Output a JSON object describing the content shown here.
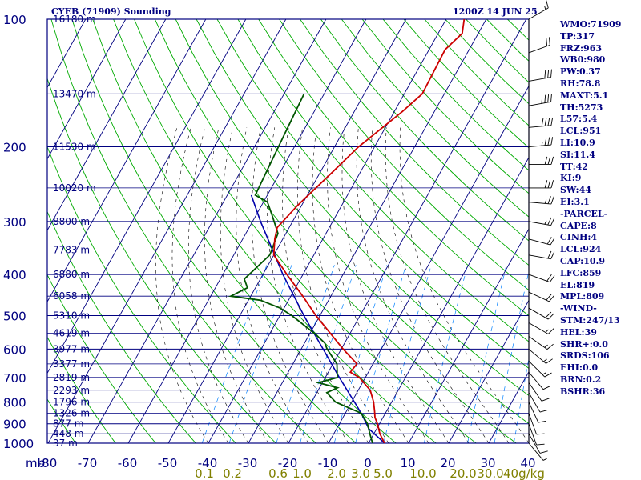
{
  "header": {
    "station": "CYEB (71909) Sounding",
    "time": "1200Z 14 JUN 25"
  },
  "stats": [
    "WMO:71909",
    "TP:317",
    "FRZ:963",
    "WB0:980",
    "PW:0.37",
    "RH:78.8",
    "MAXT:5.1",
    "TH:5273",
    "L57:5.4",
    "LCL:951",
    "LI:10.9",
    "SI:11.4",
    "TT:42",
    "KI:9",
    "SW:44",
    "EI:3.1",
    "-PARCEL-",
    "CAPE:8",
    "CINH:4",
    "LCL:924",
    "CAP:10.9",
    "LFC:859",
    "EL:819",
    "MPL:809",
    "-WIND-",
    "STM:247/13",
    "HEL:39",
    "SHR+:0.0",
    "SRDS:106",
    "EHI:0.0",
    "BRN:0.2",
    "BSHR:36"
  ],
  "colors": {
    "background": "#ffffff",
    "isobar": "#000080",
    "isotherm": "#000080",
    "dry_adiabat": "#00aa00",
    "moist_adiabat": "#000000",
    "mixing_ratio": "#0080ff",
    "temperature": "#cc0000",
    "dewpoint": "#005500",
    "parcel": "#0000aa",
    "label_text": "#000080",
    "mixing_label_text": "#808000"
  },
  "chart_data": {
    "type": "skew-t",
    "pressure_unit": "mb",
    "pressure_range": [
      100,
      1000
    ],
    "temperature_range": [
      -80,
      0
    ],
    "pressure_ticks": [
      100,
      200,
      300,
      400,
      500,
      600,
      700,
      800,
      900,
      1000
    ],
    "pressure_axis_unit_label": "mb",
    "temperature_ticks": [
      -80,
      -70,
      -60,
      -50,
      -40,
      -30,
      -20,
      -10,
      0,
      10,
      20,
      30,
      40
    ],
    "temperature_tick_labels": [
      "-80",
      "-70",
      "-60",
      "-50",
      "-40",
      "-30",
      "-20",
      "-10",
      "0",
      "10",
      "20",
      "30",
      "40"
    ],
    "mixing_ratio_ticks": [
      0.1,
      0.2,
      0.6,
      1.0,
      2.0,
      3.0,
      5.0,
      10.0,
      20.0,
      30.0
    ],
    "mixing_ratio_tick_labels": [
      "0.1",
      "0.2",
      "0.6",
      "1.0",
      "2.0",
      "3.0",
      "5.0",
      "10.0",
      "20.0",
      "30.0"
    ],
    "mixing_ratio_unit_label": "40g/kg",
    "height_labels": [
      {
        "p": 100,
        "label": "16180 m"
      },
      {
        "p": 150,
        "label": "13470 m"
      },
      {
        "p": 200,
        "label": "11530 m"
      },
      {
        "p": 250,
        "label": "10020 m"
      },
      {
        "p": 300,
        "label": "8800 m"
      },
      {
        "p": 350,
        "label": "7783 m"
      },
      {
        "p": 400,
        "label": "6880 m"
      },
      {
        "p": 450,
        "label": "6058 m"
      },
      {
        "p": 500,
        "label": "5310 m"
      },
      {
        "p": 550,
        "label": "4619 m"
      },
      {
        "p": 600,
        "label": "3977 m"
      },
      {
        "p": 650,
        "label": "3377 m"
      },
      {
        "p": 700,
        "label": "2819 m"
      },
      {
        "p": 750,
        "label": "2293 m"
      },
      {
        "p": 800,
        "label": "1796 m"
      },
      {
        "p": 850,
        "label": "1326 m"
      },
      {
        "p": 900,
        "label": "877 m"
      },
      {
        "p": 950,
        "label": "448 m"
      },
      {
        "p": 1000,
        "label": "37 m"
      }
    ],
    "temperature_profile": [
      {
        "p": 100,
        "t": -35.5
      },
      {
        "p": 108,
        "t": -34.0
      },
      {
        "p": 118,
        "t": -36.0
      },
      {
        "p": 150,
        "t": -35.5
      },
      {
        "p": 165,
        "t": -38.0
      },
      {
        "p": 200,
        "t": -44.0
      },
      {
        "p": 230,
        "t": -47.0
      },
      {
        "p": 275,
        "t": -51.0
      },
      {
        "p": 310,
        "t": -53.0
      },
      {
        "p": 330,
        "t": -52.0
      },
      {
        "p": 360,
        "t": -50.0
      },
      {
        "p": 400,
        "t": -44.0
      },
      {
        "p": 450,
        "t": -37.0
      },
      {
        "p": 500,
        "t": -31.0
      },
      {
        "p": 550,
        "t": -25.0
      },
      {
        "p": 600,
        "t": -19.5
      },
      {
        "p": 650,
        "t": -14.0
      },
      {
        "p": 680,
        "t": -14.5
      },
      {
        "p": 700,
        "t": -11.5
      },
      {
        "p": 750,
        "t": -7.0
      },
      {
        "p": 800,
        "t": -4.5
      },
      {
        "p": 840,
        "t": -3.0
      },
      {
        "p": 870,
        "t": -2.0
      },
      {
        "p": 900,
        "t": -0.5
      },
      {
        "p": 950,
        "t": 1.5
      },
      {
        "p": 1000,
        "t": 4.0
      }
    ],
    "dewpoint_profile": [
      {
        "p": 150,
        "t": -65.0
      },
      {
        "p": 200,
        "t": -64.0
      },
      {
        "p": 260,
        "t": -63.0
      },
      {
        "p": 270,
        "t": -59.0
      },
      {
        "p": 290,
        "t": -56.0
      },
      {
        "p": 320,
        "t": -52.0
      },
      {
        "p": 360,
        "t": -51.0
      },
      {
        "p": 410,
        "t": -54.0
      },
      {
        "p": 430,
        "t": -52.0
      },
      {
        "p": 450,
        "t": -55.0
      },
      {
        "p": 460,
        "t": -47.0
      },
      {
        "p": 480,
        "t": -41.0
      },
      {
        "p": 500,
        "t": -37.0
      },
      {
        "p": 550,
        "t": -29.0
      },
      {
        "p": 580,
        "t": -25.0
      },
      {
        "p": 600,
        "t": -23.5
      },
      {
        "p": 650,
        "t": -19.0
      },
      {
        "p": 700,
        "t": -17.0
      },
      {
        "p": 720,
        "t": -21.0
      },
      {
        "p": 740,
        "t": -15.5
      },
      {
        "p": 760,
        "t": -17.5
      },
      {
        "p": 800,
        "t": -14.0
      },
      {
        "p": 850,
        "t": -6.0
      },
      {
        "p": 900,
        "t": -3.0
      },
      {
        "p": 950,
        "t": -1.0
      },
      {
        "p": 1000,
        "t": 1.0
      }
    ],
    "parcel_profile": [
      {
        "p": 1000,
        "t": 4.0
      },
      {
        "p": 924,
        "t": -2.0
      },
      {
        "p": 859,
        "t": -5.5
      },
      {
        "p": 819,
        "t": -8.0
      },
      {
        "p": 700,
        "t": -16.5
      },
      {
        "p": 600,
        "t": -24.5
      },
      {
        "p": 500,
        "t": -34.0
      },
      {
        "p": 400,
        "t": -45.0
      },
      {
        "p": 300,
        "t": -58.0
      },
      {
        "p": 260,
        "t": -64.0
      }
    ],
    "wind_barbs": [
      {
        "p": 100,
        "dir": 300,
        "spd": 15
      },
      {
        "p": 120,
        "dir": 290,
        "spd": 20
      },
      {
        "p": 140,
        "dir": 280,
        "spd": 30
      },
      {
        "p": 160,
        "dir": 280,
        "spd": 35
      },
      {
        "p": 180,
        "dir": 275,
        "spd": 40
      },
      {
        "p": 200,
        "dir": 275,
        "spd": 35
      },
      {
        "p": 220,
        "dir": 270,
        "spd": 30
      },
      {
        "p": 250,
        "dir": 270,
        "spd": 30
      },
      {
        "p": 270,
        "dir": 265,
        "spd": 25
      },
      {
        "p": 300,
        "dir": 260,
        "spd": 25
      },
      {
        "p": 330,
        "dir": 255,
        "spd": 20
      },
      {
        "p": 360,
        "dir": 260,
        "spd": 20
      },
      {
        "p": 400,
        "dir": 250,
        "spd": 20
      },
      {
        "p": 440,
        "dir": 245,
        "spd": 20
      },
      {
        "p": 480,
        "dir": 240,
        "spd": 20
      },
      {
        "p": 520,
        "dir": 240,
        "spd": 15
      },
      {
        "p": 560,
        "dir": 235,
        "spd": 15
      },
      {
        "p": 600,
        "dir": 230,
        "spd": 15
      },
      {
        "p": 640,
        "dir": 225,
        "spd": 15
      },
      {
        "p": 680,
        "dir": 220,
        "spd": 10
      },
      {
        "p": 720,
        "dir": 215,
        "spd": 10
      },
      {
        "p": 760,
        "dir": 210,
        "spd": 10
      },
      {
        "p": 800,
        "dir": 205,
        "spd": 10
      },
      {
        "p": 850,
        "dir": 200,
        "spd": 10
      },
      {
        "p": 900,
        "dir": 200,
        "spd": 10
      },
      {
        "p": 950,
        "dir": 210,
        "spd": 10
      },
      {
        "p": 1000,
        "dir": 220,
        "spd": 5
      }
    ]
  }
}
